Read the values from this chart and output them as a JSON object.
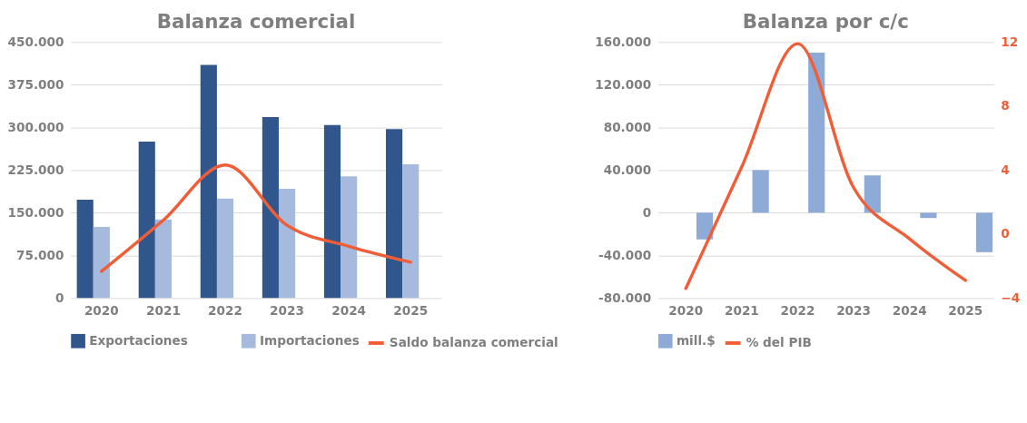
{
  "chart_data": [
    {
      "type": "bar",
      "title": "Balanza comercial",
      "categories": [
        "2020",
        "2021",
        "2022",
        "2023",
        "2024",
        "2025"
      ],
      "series": [
        {
          "name": "Exportaciones",
          "color": "#31568c",
          "values": [
            173000,
            275000,
            410000,
            318000,
            304000,
            297000
          ]
        },
        {
          "name": "Importaciones",
          "color": "#a6badd",
          "values": [
            125000,
            138000,
            175000,
            192000,
            214000,
            235000
          ]
        },
        {
          "name": "Saldo balanza comercial",
          "type": "line",
          "color": "#f15d36",
          "values": [
            47000,
            137000,
            234000,
            128000,
            91000,
            63000
          ]
        }
      ],
      "ylim": [
        0,
        450000
      ],
      "yticks": [
        {
          "value": 0,
          "label": "0"
        },
        {
          "value": 75000,
          "label": "75.000"
        },
        {
          "value": 150000,
          "label": "150.000"
        },
        {
          "value": 225000,
          "label": "225.000"
        },
        {
          "value": 300000,
          "label": "300.000"
        },
        {
          "value": 375000,
          "label": "375.000"
        },
        {
          "value": 450000,
          "label": "450.000"
        }
      ],
      "grid": "y",
      "legend": "bottom"
    },
    {
      "type": "bar",
      "title": "Balanza por c/c",
      "categories": [
        "2020",
        "2021",
        "2022",
        "2023",
        "2024",
        "2025"
      ],
      "series": [
        {
          "name": "mill.$",
          "color": "#8eabd8",
          "values": [
            -25000,
            40000,
            150000,
            35000,
            -5000,
            -37000
          ]
        },
        {
          "name": "% del PIB",
          "type": "line",
          "axis": "y2",
          "color": "#f15d36",
          "values": [
            -3.4,
            4.2,
            11.9,
            2.9,
            -0.3,
            -2.9
          ]
        }
      ],
      "ylim": [
        -80000,
        160000
      ],
      "yticks": [
        {
          "value": -80000,
          "label": "-80.000"
        },
        {
          "value": -40000,
          "label": "-40.000"
        },
        {
          "value": 0,
          "label": "0"
        },
        {
          "value": 40000,
          "label": "40.000"
        },
        {
          "value": 80000,
          "label": "80.000"
        },
        {
          "value": 120000,
          "label": "120.000"
        },
        {
          "value": 160000,
          "label": "160.000"
        }
      ],
      "y2lim": [
        -4,
        12
      ],
      "y2ticks": [
        -4,
        0,
        4,
        8,
        12
      ],
      "grid": "y",
      "legend": "bottom"
    }
  ]
}
